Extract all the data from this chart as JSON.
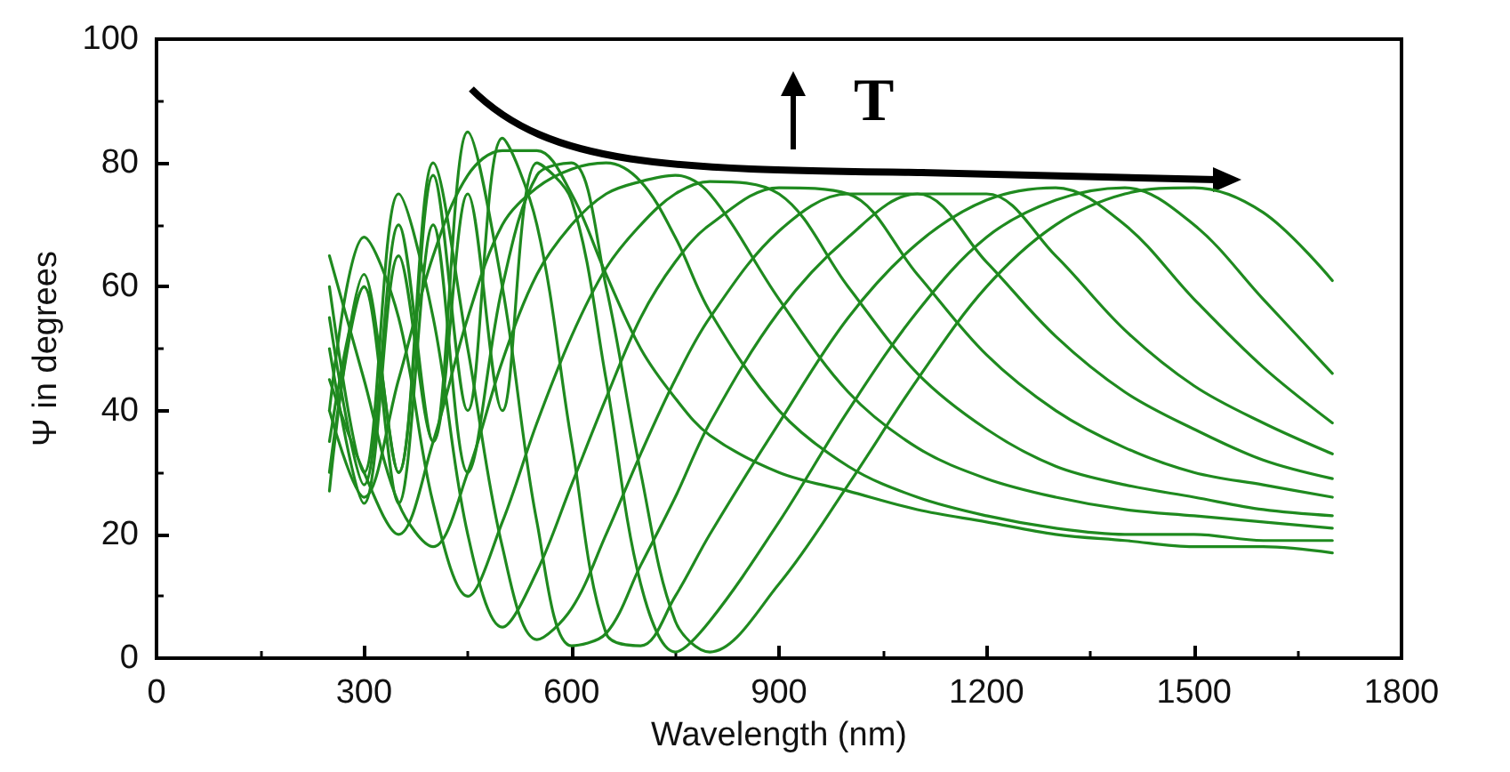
{
  "chart_data": {
    "type": "line",
    "xlabel": "Wavelength (nm)",
    "ylabel": "Ψ in degrees",
    "annotations": [
      "T"
    ],
    "x": [
      250,
      300,
      350,
      400,
      450,
      500,
      550,
      600,
      650,
      700,
      750,
      800,
      900,
      1000,
      1100,
      1200,
      1300,
      1400,
      1500,
      1600,
      1700
    ],
    "xlim": [
      0,
      1800
    ],
    "xticks": [
      0,
      300,
      600,
      900,
      1200,
      1500,
      1800
    ],
    "ylim": [
      0,
      100
    ],
    "yticks": [
      0,
      20,
      40,
      60,
      80,
      100
    ],
    "grid": false,
    "marker": "none",
    "line_style": "solid",
    "series": [
      {
        "color": "#1f8a1f",
        "values": [
          40,
          26,
          45,
          65,
          78,
          82,
          82,
          75,
          62,
          50,
          42,
          36,
          30,
          27,
          24,
          22,
          20,
          19,
          18,
          18,
          17
        ]
      },
      {
        "color": "#1f8a1f",
        "values": [
          45,
          30,
          20,
          35,
          55,
          70,
          76,
          79,
          80,
          77,
          68,
          56,
          40,
          31,
          26,
          23,
          21,
          20,
          20,
          19,
          19
        ]
      },
      {
        "color": "#1f8a1f",
        "values": [
          65,
          45,
          25,
          18,
          30,
          48,
          62,
          70,
          75,
          77,
          78,
          75,
          58,
          43,
          34,
          29,
          26,
          24,
          23,
          22,
          21
        ]
      },
      {
        "color": "#1f8a1f",
        "values": [
          40,
          68,
          55,
          25,
          10,
          22,
          38,
          52,
          63,
          70,
          75,
          77,
          75,
          60,
          46,
          37,
          31,
          28,
          26,
          24,
          23
        ]
      },
      {
        "color": "#1f8a1f",
        "values": [
          60,
          30,
          75,
          55,
          20,
          5,
          14,
          28,
          42,
          55,
          64,
          70,
          76,
          75,
          62,
          49,
          40,
          34,
          30,
          28,
          26
        ]
      },
      {
        "color": "#1f8a1f",
        "values": [
          35,
          60,
          30,
          80,
          50,
          18,
          3,
          8,
          20,
          33,
          45,
          55,
          69,
          75,
          75,
          64,
          52,
          43,
          37,
          32,
          29
        ]
      },
      {
        "color": "#1f8a1f",
        "values": [
          55,
          28,
          70,
          35,
          85,
          60,
          22,
          2,
          4,
          15,
          26,
          38,
          56,
          68,
          75,
          75,
          65,
          53,
          44,
          38,
          33
        ]
      },
      {
        "color": "#1f8a1f",
        "values": [
          27,
          62,
          30,
          78,
          40,
          84,
          70,
          35,
          4,
          2,
          10,
          20,
          38,
          55,
          67,
          74,
          76,
          70,
          58,
          47,
          38
        ]
      },
      {
        "color": "#1f8a1f",
        "values": [
          50,
          25,
          65,
          35,
          75,
          40,
          80,
          74,
          45,
          12,
          1,
          6,
          22,
          40,
          56,
          68,
          74,
          76,
          70,
          58,
          46
        ]
      },
      {
        "color": "#1f8a1f",
        "values": [
          30,
          60,
          25,
          70,
          30,
          60,
          78,
          80,
          60,
          30,
          6,
          1,
          12,
          28,
          45,
          60,
          70,
          75,
          76,
          72,
          61
        ]
      }
    ]
  }
}
